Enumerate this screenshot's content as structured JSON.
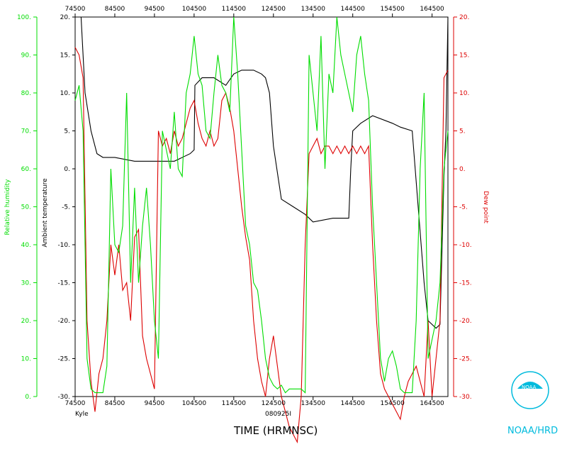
{
  "chart_data": {
    "type": "line",
    "storm": "Kyle",
    "flight_id": "080925I",
    "xlabel": "TIME (HRMNSC)",
    "x_ticks": [
      "74500",
      "84500",
      "94500",
      "104500",
      "114500",
      "124500",
      "134500",
      "144500",
      "154500",
      "164500"
    ],
    "xlim": [
      0,
      9.4
    ],
    "axes": {
      "relative_humidity": {
        "label": "Relative humidity",
        "range": [
          0,
          100
        ],
        "ticks": [
          "0.",
          "10.",
          "20.",
          "30.",
          "40.",
          "50.",
          "60.",
          "70.",
          "80.",
          "90.",
          "100."
        ],
        "color": "#00dd00"
      },
      "ambient_temperature": {
        "label": "Ambient temperature",
        "range": [
          -30,
          20
        ],
        "ticks": [
          "-30.",
          "-25.",
          "-20.",
          "-15.",
          "-10.",
          "-5.",
          "0.",
          "5.",
          "10.",
          "15.",
          "20."
        ],
        "color": "#000000"
      },
      "dew_point": {
        "label": "Dew point",
        "range": [
          -30,
          20
        ],
        "ticks": [
          "-30.",
          "-25.",
          "-20.",
          "-15.",
          "-10.",
          "-5.",
          "0.",
          "5.",
          "10.",
          "15.",
          "20."
        ],
        "color": "#dd0000"
      }
    },
    "series": [
      {
        "name": "Ambient temperature",
        "color": "#000000",
        "x": [
          0,
          0.15,
          0.25,
          0.4,
          0.55,
          0.7,
          1.0,
          1.5,
          2.0,
          2.5,
          2.9,
          3.0,
          3.02,
          3.2,
          3.5,
          3.8,
          4.0,
          4.2,
          4.5,
          4.7,
          4.8,
          4.9,
          5.0,
          5.2,
          5.5,
          5.8,
          6.0,
          6.5,
          6.9,
          6.95,
          7.0,
          7.2,
          7.5,
          8.0,
          8.2,
          8.5,
          8.8,
          8.9,
          9.0,
          9.1,
          9.2,
          9.3,
          9.35,
          9.4
        ],
        "y": [
          20,
          20,
          10,
          5,
          2,
          1.5,
          1.5,
          1,
          1,
          1,
          2,
          2.5,
          11,
          12,
          12,
          11,
          12.5,
          13,
          13,
          12.5,
          12,
          10,
          3,
          -4,
          -5,
          -6,
          -7,
          -6.5,
          -6.5,
          0,
          5,
          6,
          7,
          6,
          5.5,
          5,
          -15,
          -20,
          -20.5,
          -21,
          -20.5,
          -1,
          5,
          20
        ]
      },
      {
        "name": "Dew point",
        "color": "#dd0000",
        "x": [
          0,
          0.1,
          0.2,
          0.3,
          0.4,
          0.5,
          0.6,
          0.7,
          0.8,
          0.9,
          1.0,
          1.1,
          1.2,
          1.3,
          1.4,
          1.5,
          1.6,
          1.7,
          1.8,
          1.9,
          2.0,
          2.1,
          2.2,
          2.3,
          2.4,
          2.5,
          2.6,
          2.7,
          2.8,
          2.9,
          3.0,
          3.1,
          3.2,
          3.3,
          3.4,
          3.5,
          3.6,
          3.7,
          3.8,
          3.9,
          4.0,
          4.1,
          4.2,
          4.3,
          4.4,
          4.5,
          4.6,
          4.7,
          4.8,
          4.9,
          5.0,
          5.1,
          5.2,
          5.3,
          5.4,
          5.5,
          5.6,
          5.7,
          5.8,
          5.9,
          6.0,
          6.1,
          6.2,
          6.3,
          6.4,
          6.5,
          6.6,
          6.7,
          6.8,
          6.9,
          7.0,
          7.1,
          7.2,
          7.3,
          7.4,
          7.5,
          7.6,
          7.7,
          7.8,
          7.9,
          8.0,
          8.1,
          8.2,
          8.3,
          8.4,
          8.5,
          8.6,
          8.7,
          8.8,
          8.9,
          9.0,
          9.1,
          9.2,
          9.3,
          9.4
        ],
        "y": [
          16,
          15,
          12,
          -20,
          -28,
          -32,
          -27,
          -25,
          -20,
          -10,
          -14,
          -10,
          -16,
          -15,
          -20,
          -9,
          -8,
          -22,
          -25,
          -27,
          -29,
          5,
          3,
          4,
          2,
          5,
          3,
          4,
          6,
          8,
          9,
          6,
          4,
          3,
          5,
          3,
          4,
          9,
          10,
          8,
          5,
          0,
          -5,
          -9,
          -12,
          -20,
          -25,
          -28,
          -30,
          -25,
          -22,
          -26,
          -30,
          -32,
          -34,
          -35,
          -36,
          -30,
          -10,
          2,
          3,
          4,
          2,
          3,
          3,
          2,
          3,
          2,
          3,
          2,
          3,
          2,
          3,
          2,
          3,
          -10,
          -20,
          -27,
          -29,
          -30,
          -31,
          -32,
          -33,
          -30,
          -28,
          -27,
          -26,
          -28,
          -30,
          -20,
          -30,
          -25,
          -20,
          12,
          13
        ]
      },
      {
        "name": "Relative humidity",
        "color": "#00dd00",
        "x": [
          0,
          0.1,
          0.2,
          0.3,
          0.4,
          0.5,
          0.6,
          0.7,
          0.8,
          0.9,
          1.0,
          1.1,
          1.2,
          1.3,
          1.4,
          1.5,
          1.6,
          1.7,
          1.8,
          1.9,
          2.0,
          2.1,
          2.2,
          2.3,
          2.4,
          2.5,
          2.6,
          2.7,
          2.8,
          2.9,
          3.0,
          3.1,
          3.2,
          3.3,
          3.4,
          3.5,
          3.6,
          3.7,
          3.8,
          3.9,
          4.0,
          4.1,
          4.2,
          4.3,
          4.4,
          4.5,
          4.6,
          4.7,
          4.8,
          4.9,
          5.0,
          5.1,
          5.2,
          5.3,
          5.4,
          5.5,
          5.6,
          5.7,
          5.8,
          5.9,
          6.0,
          6.1,
          6.2,
          6.3,
          6.4,
          6.5,
          6.6,
          6.7,
          6.8,
          6.9,
          7.0,
          7.1,
          7.2,
          7.3,
          7.4,
          7.5,
          7.6,
          7.7,
          7.8,
          7.9,
          8.0,
          8.1,
          8.2,
          8.3,
          8.4,
          8.5,
          8.6,
          8.7,
          8.8,
          8.9,
          9.0,
          9.1,
          9.2,
          9.3,
          9.4
        ],
        "y": [
          78,
          82,
          70,
          10,
          2,
          1,
          1,
          1,
          8,
          60,
          40,
          38,
          45,
          80,
          30,
          55,
          30,
          45,
          55,
          40,
          20,
          10,
          70,
          65,
          60,
          75,
          60,
          58,
          80,
          85,
          95,
          85,
          82,
          70,
          68,
          80,
          90,
          82,
          80,
          75,
          100,
          85,
          65,
          45,
          40,
          30,
          28,
          20,
          10,
          5,
          3,
          2,
          3,
          1,
          2,
          2,
          2,
          2,
          1,
          90,
          80,
          70,
          95,
          60,
          85,
          80,
          100,
          90,
          85,
          80,
          75,
          90,
          95,
          85,
          78,
          50,
          30,
          10,
          4,
          10,
          12,
          8,
          2,
          1,
          1,
          1,
          20,
          60,
          80,
          10,
          15,
          20,
          30,
          60,
          70
        ]
      }
    ],
    "storm_label": "Kyle",
    "date_label": "080925I"
  },
  "logo": {
    "text": "NOAA/HRD",
    "emblem_text": "NOAA",
    "color": "#00bbdd"
  }
}
